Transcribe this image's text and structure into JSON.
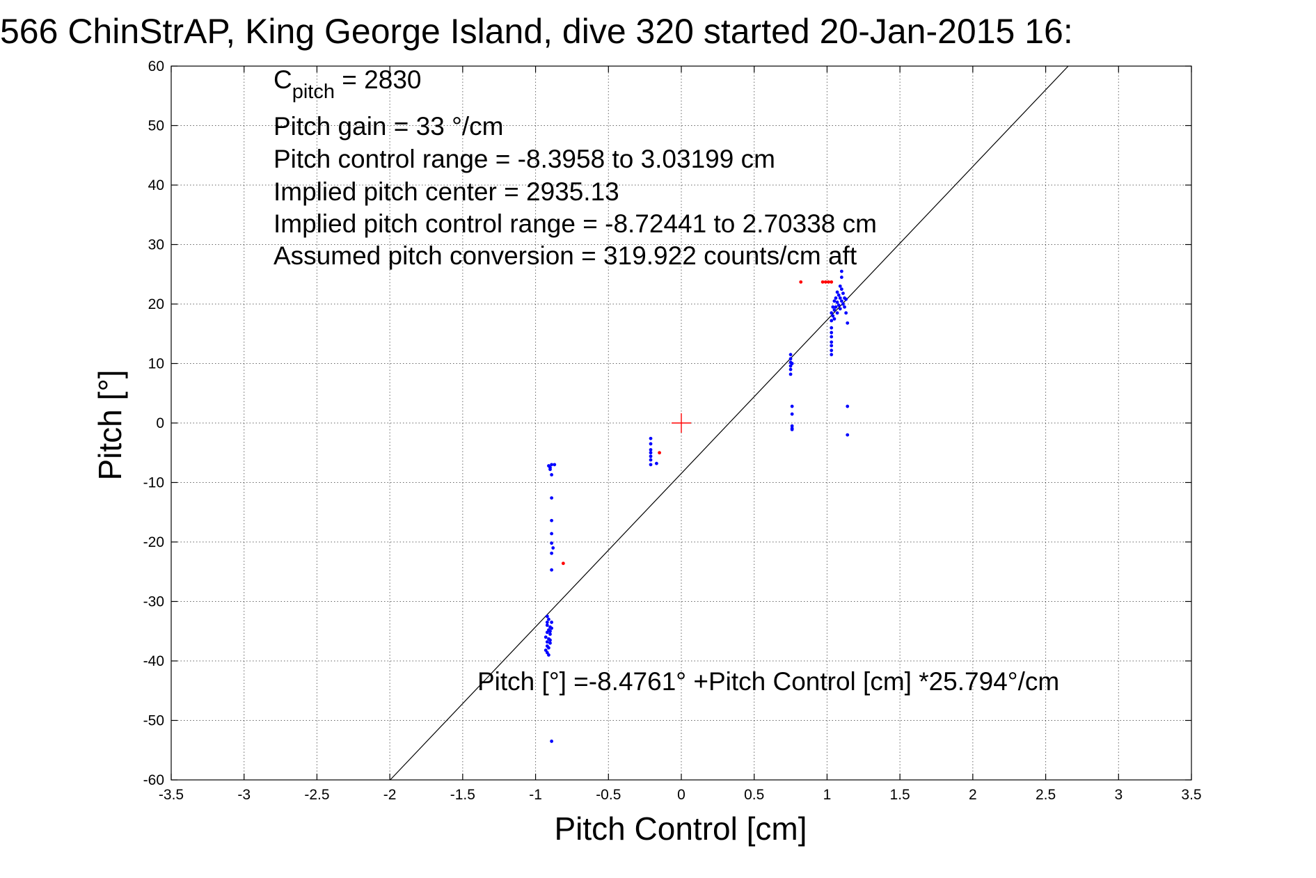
{
  "chart_data": {
    "type": "scatter",
    "title": "566 ChinStrAP, King George Island, dive 320 started 20-Jan-2015 16:",
    "xlabel": "Pitch Control [cm]",
    "ylabel": "Pitch [°]",
    "xlim": [
      -3.5,
      3.5
    ],
    "ylim": [
      -60,
      60
    ],
    "xticks": [
      -3.5,
      -3,
      -2.5,
      -2,
      -1.5,
      -1,
      -0.5,
      0,
      0.5,
      1,
      1.5,
      2,
      2.5,
      3,
      3.5
    ],
    "xtick_labels": [
      "-3.5",
      "-3",
      "-2.5",
      "-2",
      "-1.5",
      "-1",
      "-0.5",
      "0",
      "0.5",
      "1",
      "1.5",
      "2",
      "2.5",
      "3",
      "3.5"
    ],
    "yticks": [
      60,
      50,
      40,
      30,
      20,
      10,
      0,
      -10,
      -20,
      -30,
      -40,
      -50,
      -60
    ],
    "ytick_labels": [
      "60",
      "50",
      "40",
      "30",
      "20",
      "10",
      "0",
      "-10",
      "-20",
      "-30",
      "-40",
      "-50",
      "-60"
    ],
    "grid": true,
    "annotations": {
      "c_pitch_main": "C",
      "c_pitch_sub": "pitch",
      "c_pitch_value": " = 2830",
      "lines": [
        "Pitch gain = 33 °/cm",
        "Pitch control range = -8.3958 to 3.03199 cm",
        "Implied pitch center = 2935.13",
        "Implied pitch control range = -8.72441 to 2.70338 cm",
        "Assumed pitch conversion = 319.922 counts/cm aft"
      ],
      "fit_equation": "Pitch [°] =-8.4761° +Pitch Control [cm] *25.794°/cm"
    },
    "fit_line": {
      "intercept": -8.4761,
      "slope": 25.794
    },
    "center_marker": {
      "x": 0,
      "y": 0,
      "color": "#ff0000"
    },
    "series": [
      {
        "color": "#0000ff",
        "points": [
          [
            -0.91,
            -7.2
          ],
          [
            -0.9,
            -7.5
          ],
          [
            -0.89,
            -7.0
          ],
          [
            -0.9,
            -7.8
          ],
          [
            -0.87,
            -7.0
          ],
          [
            -0.89,
            -8.7
          ],
          [
            -0.89,
            -12.6
          ],
          [
            -0.89,
            -16.4
          ],
          [
            -0.89,
            -18.6
          ],
          [
            -0.89,
            -20.2
          ],
          [
            -0.88,
            -21.0
          ],
          [
            -0.89,
            -21.9
          ],
          [
            -0.89,
            -24.7
          ],
          [
            -0.92,
            -32.5
          ],
          [
            -0.91,
            -33.0
          ],
          [
            -0.92,
            -34.0
          ],
          [
            -0.9,
            -34.3
          ],
          [
            -0.91,
            -34.8
          ],
          [
            -0.92,
            -35.2
          ],
          [
            -0.9,
            -35.5
          ],
          [
            -0.93,
            -36.0
          ],
          [
            -0.91,
            -36.3
          ],
          [
            -0.92,
            -36.8
          ],
          [
            -0.9,
            -37.0
          ],
          [
            -0.92,
            -37.5
          ],
          [
            -0.91,
            -37.8
          ],
          [
            -0.93,
            -38.2
          ],
          [
            -0.92,
            -38.6
          ],
          [
            -0.91,
            -39.0
          ],
          [
            -0.9,
            -35.0
          ],
          [
            -0.89,
            -34.5
          ],
          [
            -0.89,
            -33.5
          ],
          [
            -0.9,
            -36.5
          ],
          [
            -0.92,
            -33.5
          ],
          [
            -0.89,
            -53.5
          ],
          [
            -0.21,
            -2.6
          ],
          [
            -0.21,
            -3.5
          ],
          [
            -0.21,
            -4.5
          ],
          [
            -0.21,
            -5.0
          ],
          [
            -0.21,
            -5.6
          ],
          [
            -0.21,
            -6.2
          ],
          [
            -0.21,
            -7.0
          ],
          [
            -0.17,
            -6.8
          ],
          [
            0.75,
            11.5
          ],
          [
            0.75,
            10.8
          ],
          [
            0.75,
            10.2
          ],
          [
            0.75,
            9.6
          ],
          [
            0.75,
            9.0
          ],
          [
            0.75,
            8.2
          ],
          [
            0.76,
            10.0
          ],
          [
            0.76,
            2.8
          ],
          [
            0.76,
            1.5
          ],
          [
            0.76,
            -0.5
          ],
          [
            0.76,
            -0.9
          ],
          [
            0.76,
            -1.1
          ],
          [
            1.03,
            18.5
          ],
          [
            1.03,
            17.2
          ],
          [
            1.03,
            16.0
          ],
          [
            1.03,
            15.2
          ],
          [
            1.03,
            14.5
          ],
          [
            1.03,
            13.6
          ],
          [
            1.03,
            13.0
          ],
          [
            1.03,
            12.2
          ],
          [
            1.03,
            11.5
          ],
          [
            1.04,
            19.5
          ],
          [
            1.04,
            18.0
          ],
          [
            1.05,
            20.5
          ],
          [
            1.05,
            19.0
          ],
          [
            1.05,
            17.5
          ],
          [
            1.06,
            21.0
          ],
          [
            1.06,
            19.5
          ],
          [
            1.07,
            22.0
          ],
          [
            1.07,
            20.3
          ],
          [
            1.07,
            18.5
          ],
          [
            1.08,
            21.5
          ],
          [
            1.08,
            19.8
          ],
          [
            1.09,
            23.0
          ],
          [
            1.09,
            21.0
          ],
          [
            1.09,
            19.2
          ],
          [
            1.1,
            24.5
          ],
          [
            1.1,
            22.5
          ],
          [
            1.1,
            20.5
          ],
          [
            1.1,
            25.5
          ],
          [
            1.11,
            21.8
          ],
          [
            1.11,
            20.0
          ],
          [
            1.12,
            21.0
          ],
          [
            1.12,
            19.5
          ],
          [
            1.13,
            18.5
          ],
          [
            1.13,
            20.8
          ],
          [
            1.14,
            16.8
          ],
          [
            1.14,
            2.8
          ],
          [
            1.14,
            -2.0
          ]
        ]
      },
      {
        "color": "#ff0000",
        "points": [
          [
            -0.81,
            -23.6
          ],
          [
            -0.15,
            -5.0
          ],
          [
            0.82,
            23.7
          ],
          [
            0.97,
            23.7
          ],
          [
            0.99,
            23.7
          ],
          [
            1.01,
            23.7
          ],
          [
            1.03,
            23.7
          ]
        ]
      }
    ]
  }
}
